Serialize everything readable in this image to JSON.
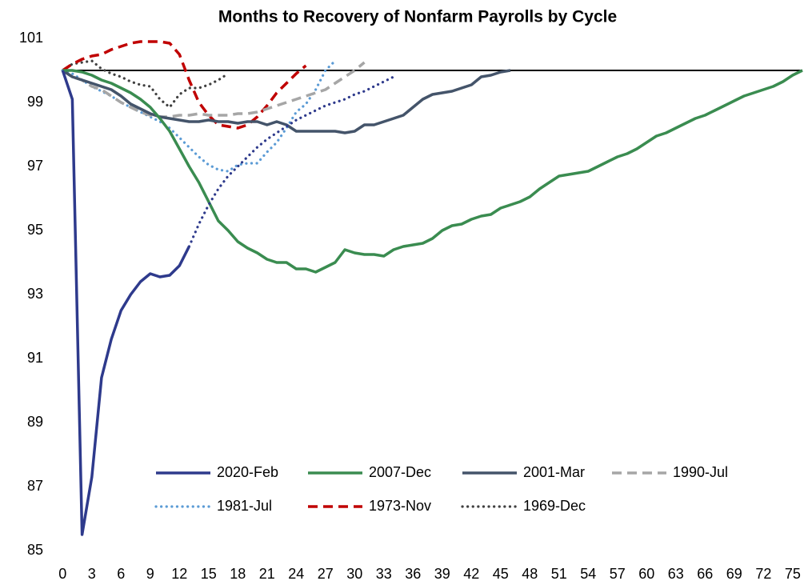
{
  "chart_data": {
    "type": "line",
    "title": "Months to Recovery of Nonfarm Payrolls by Cycle",
    "x": [
      0,
      1,
      2,
      3,
      4,
      5,
      6,
      7,
      8,
      9,
      10,
      11,
      12,
      13,
      14,
      15,
      16,
      17,
      18,
      19,
      20,
      21,
      22,
      23,
      24,
      25,
      26,
      27,
      28,
      29,
      30,
      31,
      32,
      33,
      34,
      35,
      36,
      37,
      38,
      39,
      40,
      41,
      42,
      43,
      44,
      45,
      46,
      47,
      48,
      49,
      50,
      51,
      52,
      53,
      54,
      55,
      56,
      57,
      58,
      59,
      60,
      61,
      62,
      63,
      64,
      65,
      66,
      67,
      68,
      69,
      70,
      71,
      72,
      73,
      74,
      75,
      76
    ],
    "xlim": [
      -1.5,
      76
    ],
    "xticks": [
      0,
      3,
      6,
      9,
      12,
      15,
      18,
      21,
      24,
      27,
      30,
      33,
      36,
      39,
      42,
      45,
      48,
      51,
      54,
      57,
      60,
      63,
      66,
      69,
      72,
      75
    ],
    "ylim": [
      85,
      101
    ],
    "yticks": [
      85,
      87,
      89,
      91,
      93,
      95,
      97,
      99,
      101
    ],
    "reference_line": 100,
    "grid": false,
    "series": [
      {
        "name": "2020-Feb",
        "color": "#2e3a8c",
        "style": "solid",
        "values": [
          100,
          99.1,
          85.5,
          87.3,
          90.4,
          91.6,
          92.5,
          93,
          93.4,
          93.65,
          93.55,
          93.6,
          93.9,
          94.5,
          null,
          null,
          null,
          null,
          null,
          null,
          null,
          null,
          null,
          null,
          null,
          null,
          null,
          null,
          null,
          null,
          null,
          null,
          null,
          null,
          null,
          null,
          null,
          null,
          null,
          null,
          null,
          null,
          null,
          null,
          null,
          null,
          null,
          null,
          null,
          null,
          null,
          null,
          null,
          null,
          null,
          null,
          null,
          null,
          null,
          null,
          null,
          null,
          null,
          null,
          null,
          null,
          null,
          null,
          null,
          null,
          null,
          null,
          null,
          null,
          null,
          null,
          null
        ],
        "projection": [
          null,
          null,
          null,
          null,
          null,
          null,
          null,
          null,
          null,
          null,
          null,
          null,
          null,
          94.5,
          95.2,
          95.8,
          96.3,
          96.7,
          97.0,
          97.3,
          97.6,
          97.85,
          98.05,
          98.25,
          98.45,
          98.6,
          98.75,
          98.9,
          99.0,
          99.1,
          99.25,
          99.35,
          99.5,
          99.65,
          99.8,
          null,
          null,
          null,
          null,
          null,
          null,
          null,
          null,
          null,
          null,
          null,
          null,
          null,
          null,
          null,
          null,
          null,
          null,
          null,
          null,
          null,
          null,
          null,
          null,
          null,
          null,
          null,
          null,
          null,
          null,
          null,
          null,
          null,
          null,
          null,
          null,
          null,
          null,
          null,
          null,
          null,
          null
        ]
      },
      {
        "name": "2007-Dec",
        "color": "#3a8c50",
        "style": "solid",
        "values": [
          100,
          100,
          99.95,
          99.85,
          99.7,
          99.6,
          99.45,
          99.3,
          99.1,
          98.85,
          98.5,
          98.1,
          97.55,
          97.0,
          96.5,
          95.9,
          95.3,
          95.0,
          94.65,
          94.45,
          94.3,
          94.1,
          94.0,
          94.0,
          93.8,
          93.8,
          93.7,
          93.85,
          94.0,
          94.4,
          94.3,
          94.25,
          94.25,
          94.2,
          94.4,
          94.5,
          94.55,
          94.6,
          94.75,
          95.0,
          95.15,
          95.2,
          95.35,
          95.45,
          95.5,
          95.7,
          95.8,
          95.9,
          96.05,
          96.3,
          96.5,
          96.7,
          96.75,
          96.8,
          96.85,
          97.0,
          97.15,
          97.3,
          97.4,
          97.55,
          97.75,
          97.95,
          98.05,
          98.2,
          98.35,
          98.5,
          98.6,
          98.75,
          98.9,
          99.05,
          99.2,
          99.3,
          99.4,
          99.5,
          99.65,
          99.85,
          100
        ]
      },
      {
        "name": "2001-Mar",
        "color": "#44546a",
        "style": "solid",
        "values": [
          100,
          99.8,
          99.7,
          99.6,
          99.5,
          99.4,
          99.2,
          98.95,
          98.8,
          98.65,
          98.55,
          98.5,
          98.45,
          98.4,
          98.4,
          98.45,
          98.4,
          98.4,
          98.35,
          98.4,
          98.4,
          98.3,
          98.4,
          98.3,
          98.1,
          98.1,
          98.1,
          98.1,
          98.1,
          98.05,
          98.1,
          98.3,
          98.3,
          98.4,
          98.5,
          98.6,
          98.85,
          99.1,
          99.25,
          99.3,
          99.35,
          99.45,
          99.55,
          99.8,
          99.85,
          99.95,
          100,
          null,
          null,
          null,
          null,
          null,
          null,
          null,
          null,
          null,
          null,
          null,
          null,
          null,
          null,
          null,
          null,
          null,
          null,
          null,
          null,
          null,
          null,
          null,
          null,
          null,
          null,
          null,
          null,
          null,
          null
        ]
      },
      {
        "name": "1990-Jul",
        "color": "#a6a6a6",
        "style": "dashed",
        "values": [
          100,
          99.8,
          99.7,
          99.5,
          99.4,
          99.2,
          99.0,
          98.85,
          98.7,
          98.6,
          98.55,
          98.55,
          98.6,
          98.6,
          98.65,
          98.6,
          98.6,
          98.6,
          98.65,
          98.65,
          98.7,
          98.8,
          98.9,
          99.0,
          99.1,
          99.2,
          99.3,
          99.4,
          99.6,
          99.8,
          100.0,
          100.25,
          null,
          null,
          null,
          null,
          null,
          null,
          null,
          null,
          null,
          null,
          null,
          null,
          null,
          null,
          null,
          null,
          null,
          null,
          null,
          null,
          null,
          null,
          null,
          null,
          null,
          null,
          null,
          null,
          null,
          null,
          null,
          null,
          null,
          null,
          null,
          null,
          null,
          null,
          null,
          null,
          null,
          null,
          null,
          null,
          null
        ]
      },
      {
        "name": "1981-Jul",
        "color": "#5b9bd5",
        "style": "dotted",
        "values": [
          100,
          99.9,
          99.7,
          99.5,
          99.35,
          99.2,
          99.0,
          98.85,
          98.7,
          98.55,
          98.4,
          98.2,
          97.9,
          97.6,
          97.3,
          97.05,
          96.9,
          96.85,
          97.05,
          97.1,
          97.1,
          97.45,
          97.75,
          98.2,
          98.7,
          98.95,
          99.4,
          100.0,
          100.3,
          null,
          null,
          null,
          null,
          null,
          null,
          null,
          null,
          null,
          null,
          null,
          null,
          null,
          null,
          null,
          null,
          null,
          null,
          null,
          null,
          null,
          null,
          null,
          null,
          null,
          null,
          null,
          null,
          null,
          null,
          null,
          null,
          null,
          null,
          null,
          null,
          null,
          null,
          null,
          null,
          null,
          null,
          null,
          null,
          null,
          null,
          null,
          null
        ]
      },
      {
        "name": "1973-Nov",
        "color": "#c00000",
        "style": "dashed",
        "values": [
          100,
          100.2,
          100.35,
          100.45,
          100.5,
          100.65,
          100.75,
          100.85,
          100.9,
          100.9,
          100.9,
          100.85,
          100.5,
          99.7,
          99.0,
          98.6,
          98.3,
          98.25,
          98.2,
          98.3,
          98.55,
          98.9,
          99.3,
          99.6,
          99.9,
          100.15,
          null,
          null,
          null,
          null,
          null,
          null,
          null,
          null,
          null,
          null,
          null,
          null,
          null,
          null,
          null,
          null,
          null,
          null,
          null,
          null,
          null,
          null,
          null,
          null,
          null,
          null,
          null,
          null,
          null,
          null,
          null,
          null,
          null,
          null,
          null,
          null,
          null,
          null,
          null,
          null,
          null,
          null,
          null,
          null,
          null,
          null,
          null,
          null,
          null,
          null,
          null
        ]
      },
      {
        "name": "1969-Dec",
        "color": "#404040",
        "style": "dotted",
        "values": [
          100,
          100.2,
          100.25,
          100.3,
          100.05,
          99.9,
          99.8,
          99.65,
          99.55,
          99.5,
          99.1,
          98.85,
          99.25,
          99.45,
          99.45,
          99.55,
          99.7,
          99.9,
          null,
          null,
          null,
          null,
          null,
          null,
          null,
          null,
          null,
          null,
          null,
          null,
          null,
          null,
          null,
          null,
          null,
          null,
          null,
          null,
          null,
          null,
          null,
          null,
          null,
          null,
          null,
          null,
          null,
          null,
          null,
          null,
          null,
          null,
          null,
          null,
          null,
          null,
          null,
          null,
          null,
          null,
          null,
          null,
          null,
          null,
          null,
          null,
          null,
          null,
          null,
          null,
          null,
          null,
          null,
          null,
          null,
          null,
          null
        ]
      }
    ]
  }
}
